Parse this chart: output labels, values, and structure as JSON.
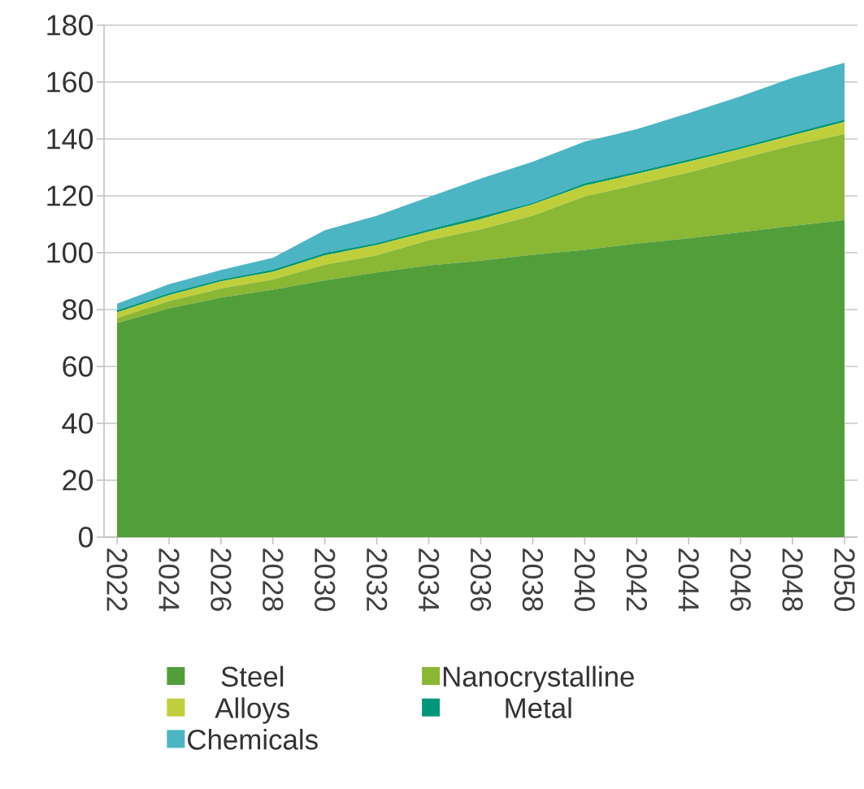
{
  "chart_data": {
    "type": "area",
    "stacked": true,
    "grid": "y",
    "legend": "bottom",
    "x": [
      2022,
      2024,
      2026,
      2028,
      2030,
      2032,
      2034,
      2036,
      2038,
      2040,
      2042,
      2044,
      2046,
      2048,
      2050
    ],
    "xlim": [
      2021.5,
      2050.5
    ],
    "xticks": [
      2022,
      2024,
      2026,
      2028,
      2030,
      2032,
      2034,
      2036,
      2038,
      2040,
      2042,
      2044,
      2046,
      2048,
      2050
    ],
    "ylim": [
      0,
      180
    ],
    "yticks": [
      0,
      20,
      40,
      60,
      80,
      100,
      120,
      140,
      160,
      180
    ],
    "series": [
      {
        "name": "Steel",
        "color": "#529e3a",
        "values": [
          75.3,
          80.4,
          84.2,
          87.0,
          90.3,
          93.1,
          95.5,
          97.2,
          99.3,
          101.0,
          103.2,
          105.1,
          107.2,
          109.4,
          111.5
        ]
      },
      {
        "name": "Nanocrystalline",
        "color": "#8ab734",
        "values": [
          1.7,
          2.6,
          3.2,
          3.6,
          5.5,
          6.0,
          8.9,
          11.0,
          13.7,
          18.8,
          20.7,
          23.1,
          25.8,
          28.3,
          30.2
        ]
      },
      {
        "name": "Alloys",
        "color": "#bfcf3b",
        "values": [
          2.0,
          2.1,
          2.5,
          2.7,
          3.3,
          3.6,
          3.0,
          3.6,
          4.0,
          3.8,
          3.8,
          3.8,
          3.5,
          3.6,
          4.3
        ]
      },
      {
        "name": "Metal",
        "color": "#00967a",
        "values": [
          0.8,
          0.7,
          0.7,
          0.8,
          0.8,
          0.7,
          0.8,
          1.0,
          0.5,
          0.8,
          0.8,
          0.8,
          0.7,
          0.8,
          0.8
        ]
      },
      {
        "name": "Chemicals",
        "color": "#4bb5c4",
        "values": [
          2.3,
          3.1,
          3.3,
          4.1,
          8.0,
          9.6,
          11.4,
          13.3,
          14.5,
          14.7,
          14.9,
          16.3,
          17.8,
          19.4,
          20.0
        ]
      }
    ]
  }
}
